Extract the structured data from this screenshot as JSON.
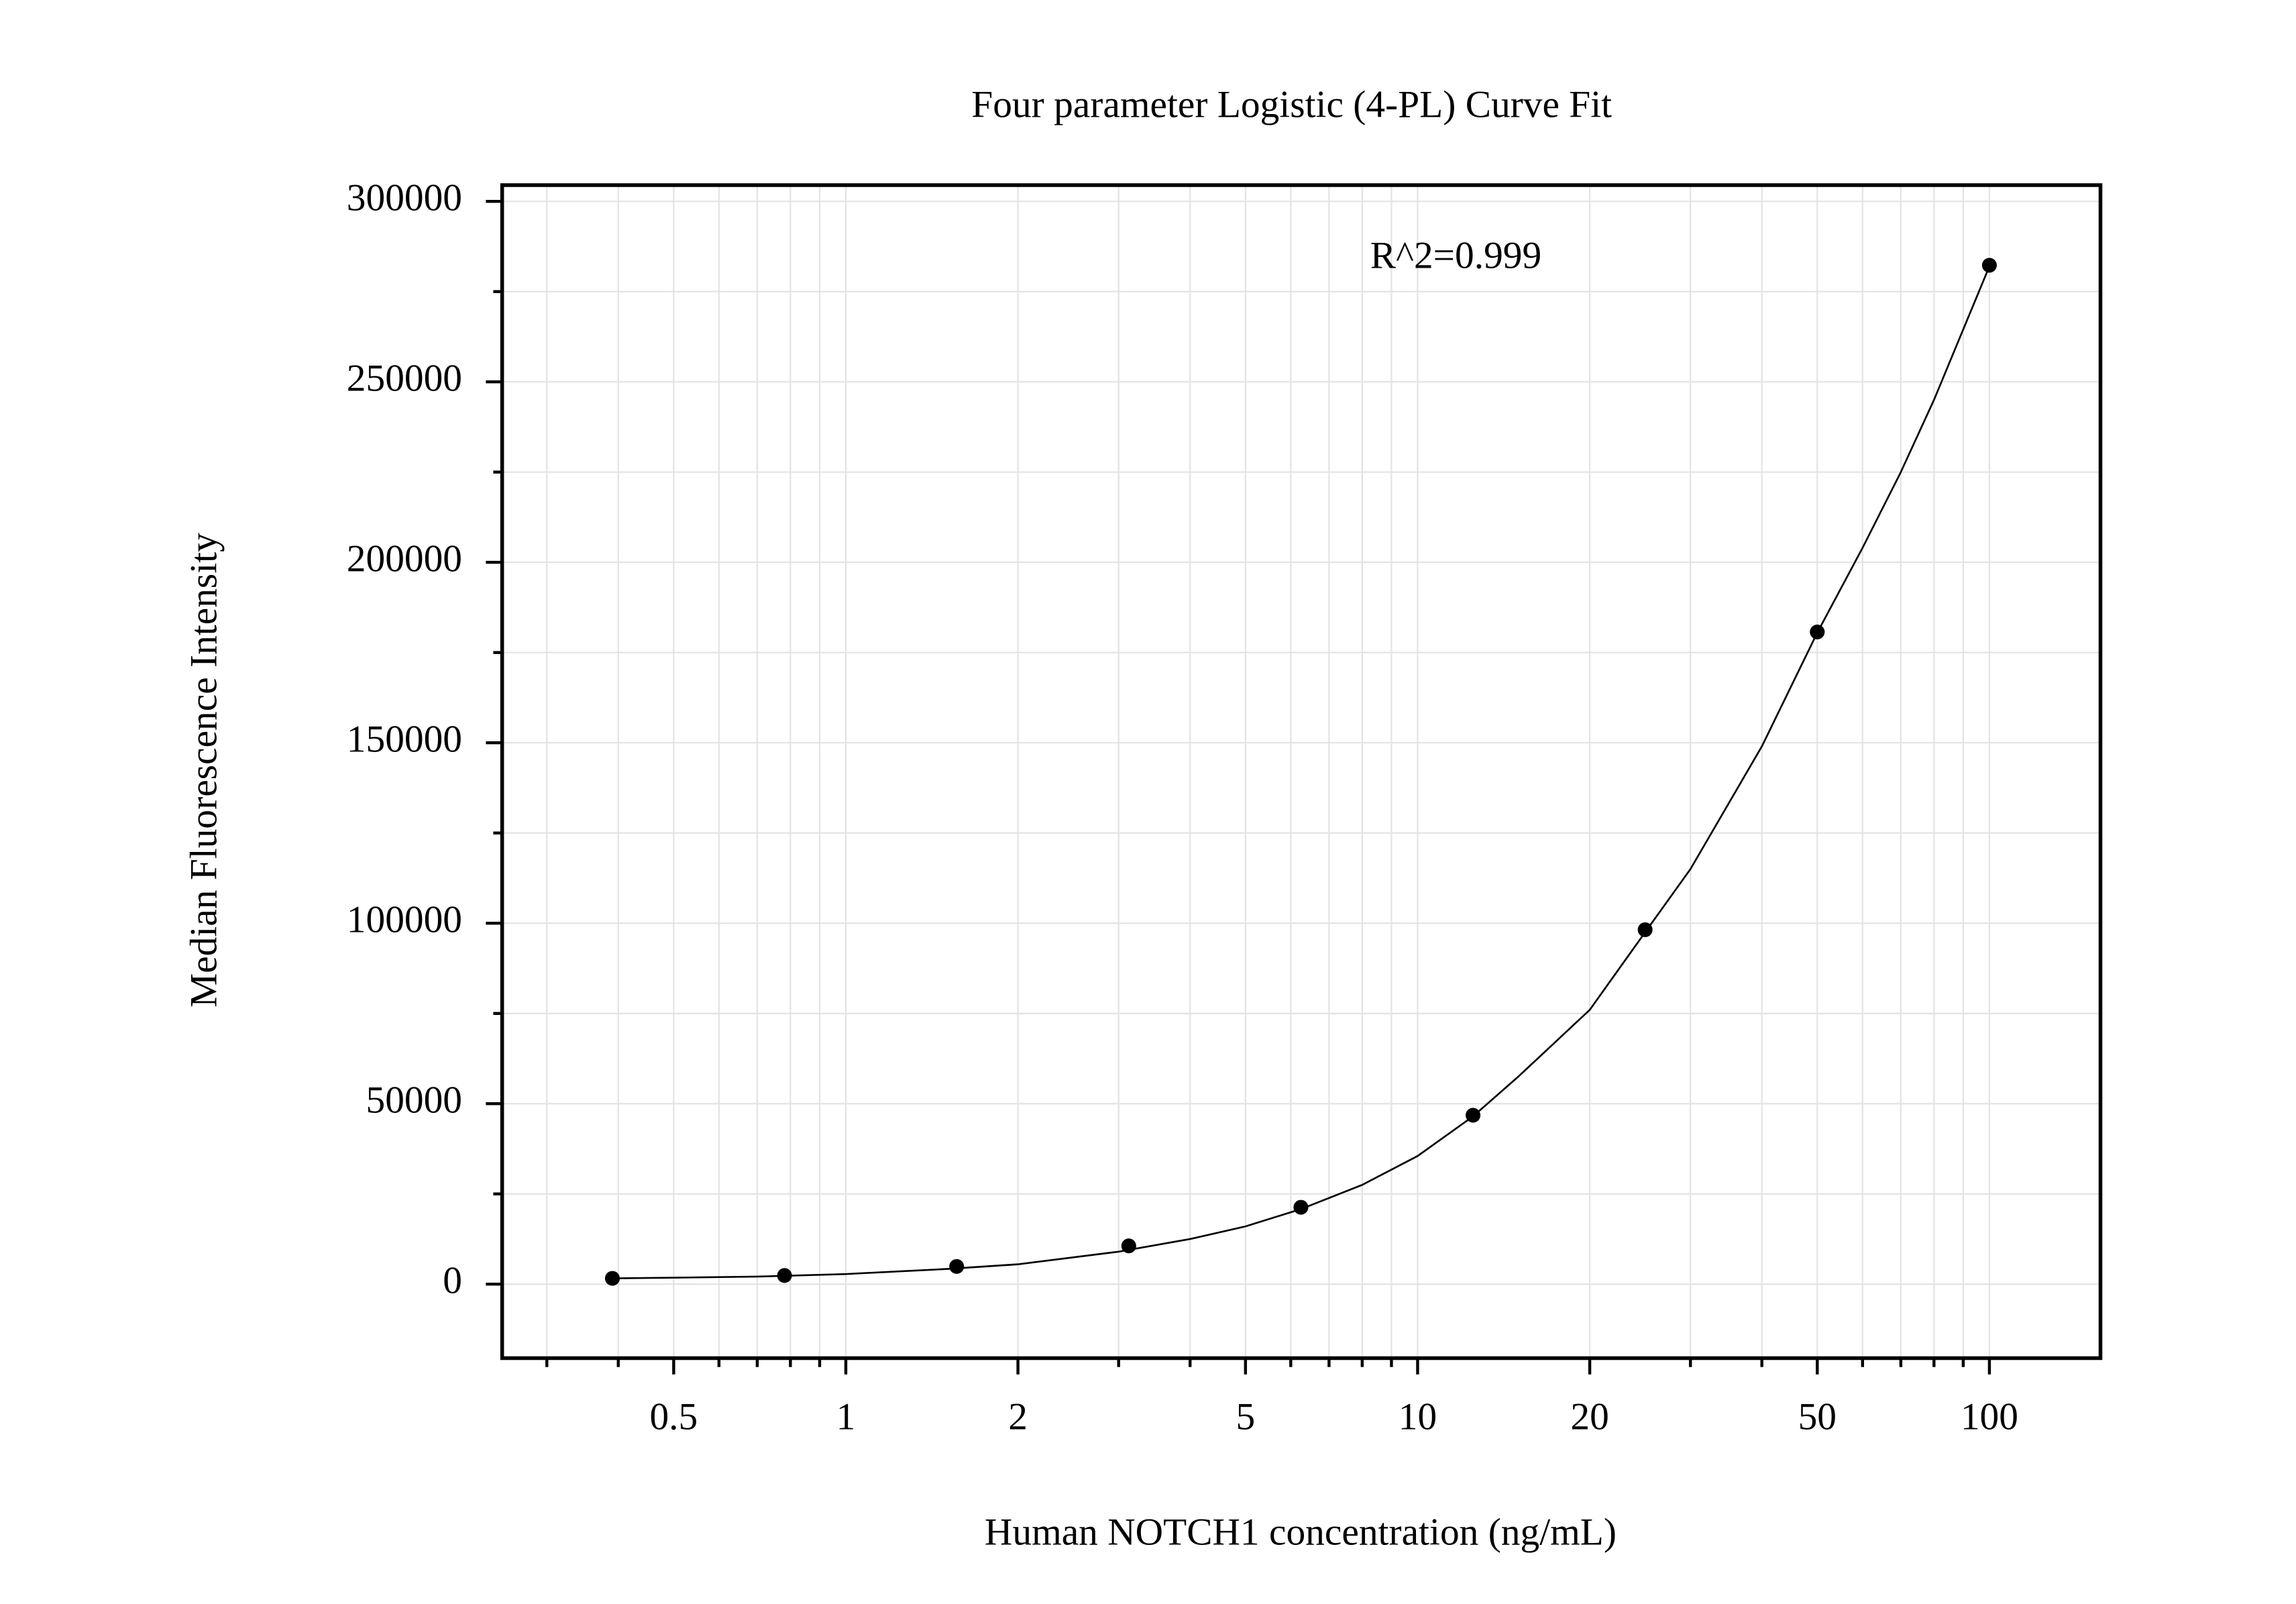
{
  "chart_data": {
    "type": "scatter",
    "title": "Four parameter Logistic (4-PL) Curve Fit",
    "x_label": "Human NOTCH1 concentration (ng/mL)",
    "y_label": "Median Fluorescence Intensity",
    "annotation": "R^2=0.999",
    "x_scale": "log",
    "grid": true,
    "color": "#000000",
    "x": [
      0.390625,
      0.78125,
      1.5625,
      3.125,
      6.25,
      12.5,
      25,
      50,
      100
    ],
    "values": [
      1600,
      2400,
      4900,
      10600,
      21300,
      46800,
      98200,
      180700,
      282300
    ],
    "curve": {
      "x": [
        0.390625,
        0.5,
        0.7,
        1,
        1.5,
        2,
        3,
        4,
        5,
        6.25,
        8,
        10,
        12.5,
        15,
        20,
        25,
        30,
        40,
        50,
        60,
        70,
        80,
        100
      ],
      "values": [
        1600,
        1800,
        2100,
        2800,
        4200,
        5500,
        9000,
        12500,
        16000,
        20800,
        27500,
        35500,
        46500,
        57500,
        76000,
        97500,
        115000,
        149000,
        180500,
        204000,
        225000,
        245000,
        282000
      ]
    },
    "xlim": [
      0.2506,
      156.4
    ],
    "xticks": [
      0.5,
      1,
      2,
      5,
      10,
      20,
      50,
      100
    ],
    "xminorticks": [
      0.3,
      0.4,
      0.6,
      0.7,
      0.8,
      0.9,
      3,
      4,
      6,
      7,
      8,
      9,
      30,
      40,
      60,
      70,
      80,
      90
    ],
    "ylim": [
      -20500,
      304500
    ],
    "yticks": [
      0,
      50000,
      100000,
      150000,
      200000,
      250000,
      300000
    ],
    "yminorticks": [
      25000,
      75000,
      125000,
      175000,
      225000,
      275000
    ]
  }
}
